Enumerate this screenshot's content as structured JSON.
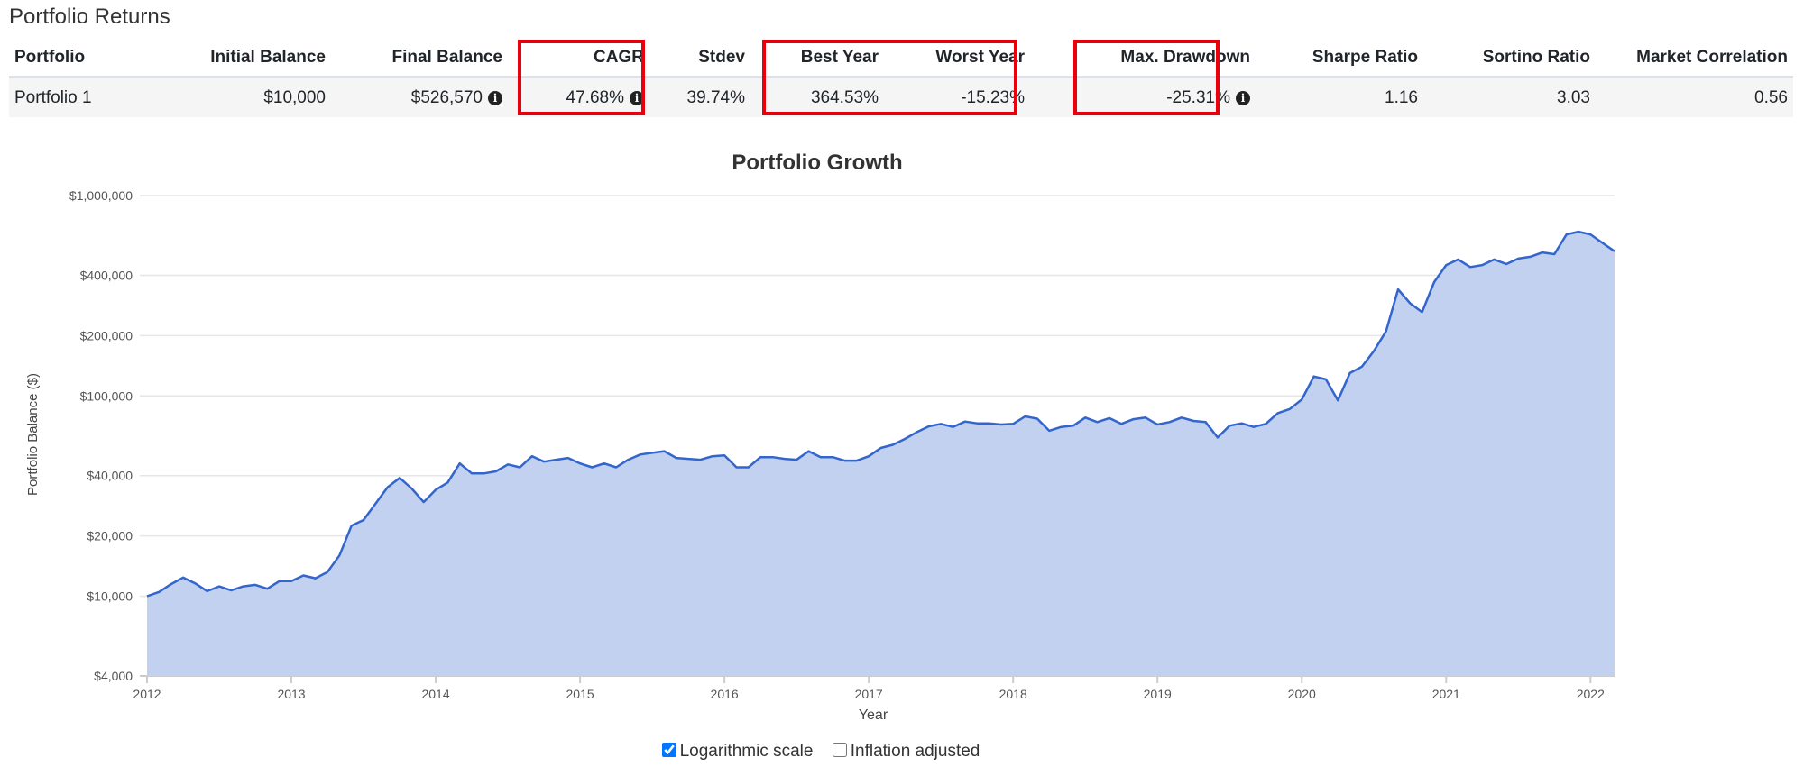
{
  "page_title": "Portfolio Returns",
  "table": {
    "headers": {
      "portfolio": "Portfolio",
      "initial_balance": "Initial Balance",
      "final_balance": "Final Balance",
      "cagr": "CAGR",
      "stdev": "Stdev",
      "best_year": "Best Year",
      "worst_year": "Worst Year",
      "max_drawdown": "Max. Drawdown",
      "sharpe": "Sharpe Ratio",
      "sortino": "Sortino Ratio",
      "market_correlation": "Market Correlation"
    },
    "row": {
      "portfolio": "Portfolio 1",
      "initial_balance": "$10,000",
      "final_balance": "$526,570",
      "cagr": "47.68%",
      "stdev": "39.74%",
      "best_year": "364.53%",
      "worst_year": "-15.23%",
      "max_drawdown": "-25.31%",
      "sharpe": "1.16",
      "sortino": "3.03",
      "market_correlation": "0.56"
    }
  },
  "highlight_color": "#e8000d",
  "controls": {
    "log_scale": {
      "label": "Logarithmic scale",
      "checked": true
    },
    "inflation": {
      "label": "Inflation adjusted",
      "checked": false
    }
  },
  "chart_data": {
    "type": "area",
    "title": "Portfolio Growth",
    "xlabel": "Year",
    "ylabel": "Portfolio Balance ($)",
    "y_scale": "log",
    "ylim": [
      4000,
      1000000
    ],
    "xlim": [
      "2012-01",
      "2022-03"
    ],
    "y_ticks": [
      {
        "value": 1000000,
        "label": "$1,000,000"
      },
      {
        "value": 400000,
        "label": "$400,000"
      },
      {
        "value": 200000,
        "label": "$200,000"
      },
      {
        "value": 100000,
        "label": "$100,000"
      },
      {
        "value": 40000,
        "label": "$40,000"
      },
      {
        "value": 20000,
        "label": "$20,000"
      },
      {
        "value": 10000,
        "label": "$10,000"
      },
      {
        "value": 4000,
        "label": "$4,000"
      }
    ],
    "x_ticks": [
      "2012",
      "2013",
      "2014",
      "2015",
      "2016",
      "2017",
      "2018",
      "2019",
      "2020",
      "2021",
      "2022"
    ],
    "line_color": "#3366cc",
    "fill_color": "#c1d1ef",
    "grid": true,
    "legend": "none",
    "series": [
      {
        "x": [
          "2012-01",
          "2012-02",
          "2012-03",
          "2012-04",
          "2012-05",
          "2012-06",
          "2012-07",
          "2012-08",
          "2012-09",
          "2012-10",
          "2012-11",
          "2012-12",
          "2013-01",
          "2013-02",
          "2013-03",
          "2013-04",
          "2013-05",
          "2013-06",
          "2013-07",
          "2013-08",
          "2013-09",
          "2013-10",
          "2013-11",
          "2013-12",
          "2014-01",
          "2014-02",
          "2014-03",
          "2014-04",
          "2014-05",
          "2014-06",
          "2014-07",
          "2014-08",
          "2014-09",
          "2014-10",
          "2014-11",
          "2014-12",
          "2015-01",
          "2015-02",
          "2015-03",
          "2015-04",
          "2015-05",
          "2015-06",
          "2015-07",
          "2015-08",
          "2015-09",
          "2015-10",
          "2015-11",
          "2015-12",
          "2016-01",
          "2016-02",
          "2016-03",
          "2016-04",
          "2016-05",
          "2016-06",
          "2016-07",
          "2016-08",
          "2016-09",
          "2016-10",
          "2016-11",
          "2016-12",
          "2017-01",
          "2017-02",
          "2017-03",
          "2017-04",
          "2017-05",
          "2017-06",
          "2017-07",
          "2017-08",
          "2017-09",
          "2017-10",
          "2017-11",
          "2017-12",
          "2018-01",
          "2018-02",
          "2018-03",
          "2018-04",
          "2018-05",
          "2018-06",
          "2018-07",
          "2018-08",
          "2018-09",
          "2018-10",
          "2018-11",
          "2018-12",
          "2019-01",
          "2019-02",
          "2019-03",
          "2019-04",
          "2019-05",
          "2019-06",
          "2019-07",
          "2019-08",
          "2019-09",
          "2019-10",
          "2019-11",
          "2019-12",
          "2020-01",
          "2020-02",
          "2020-03",
          "2020-04",
          "2020-05",
          "2020-06",
          "2020-07",
          "2020-08",
          "2020-09",
          "2020-10",
          "2020-11",
          "2020-12",
          "2021-01",
          "2021-02",
          "2021-03",
          "2021-04",
          "2021-05",
          "2021-06",
          "2021-07",
          "2021-08",
          "2021-09",
          "2021-10",
          "2021-11",
          "2021-12",
          "2022-01",
          "2022-02",
          "2022-03"
        ],
        "values": [
          10000,
          10500,
          11500,
          12400,
          11600,
          10600,
          11200,
          10700,
          11200,
          11400,
          10900,
          11900,
          11900,
          12700,
          12300,
          13200,
          16000,
          22500,
          24000,
          29000,
          35000,
          39000,
          34500,
          29500,
          34000,
          37000,
          46000,
          41000,
          41000,
          42000,
          45500,
          44000,
          50000,
          47000,
          48000,
          49000,
          46000,
          44000,
          46000,
          44000,
          48000,
          51000,
          52000,
          53000,
          49000,
          48500,
          48000,
          50000,
          50500,
          44000,
          44000,
          49500,
          49500,
          48500,
          48000,
          53000,
          49500,
          49500,
          47500,
          47500,
          50000,
          55000,
          57000,
          61000,
          66000,
          70500,
          72500,
          70000,
          74500,
          73000,
          73000,
          72000,
          72500,
          79000,
          77000,
          67000,
          70000,
          71000,
          78000,
          74000,
          77500,
          72500,
          76500,
          78000,
          72000,
          74000,
          78000,
          75000,
          74000,
          62000,
          71000,
          73000,
          70000,
          72500,
          82000,
          86000,
          96000,
          125000,
          121000,
          95000,
          130000,
          140000,
          168000,
          210000,
          340000,
          290000,
          262000,
          370000,
          450000,
          480000,
          440000,
          450000,
          480000,
          455000,
          485000,
          495000,
          520000,
          510000,
          640000,
          660000,
          640000,
          580000,
          527000
        ]
      }
    ]
  }
}
